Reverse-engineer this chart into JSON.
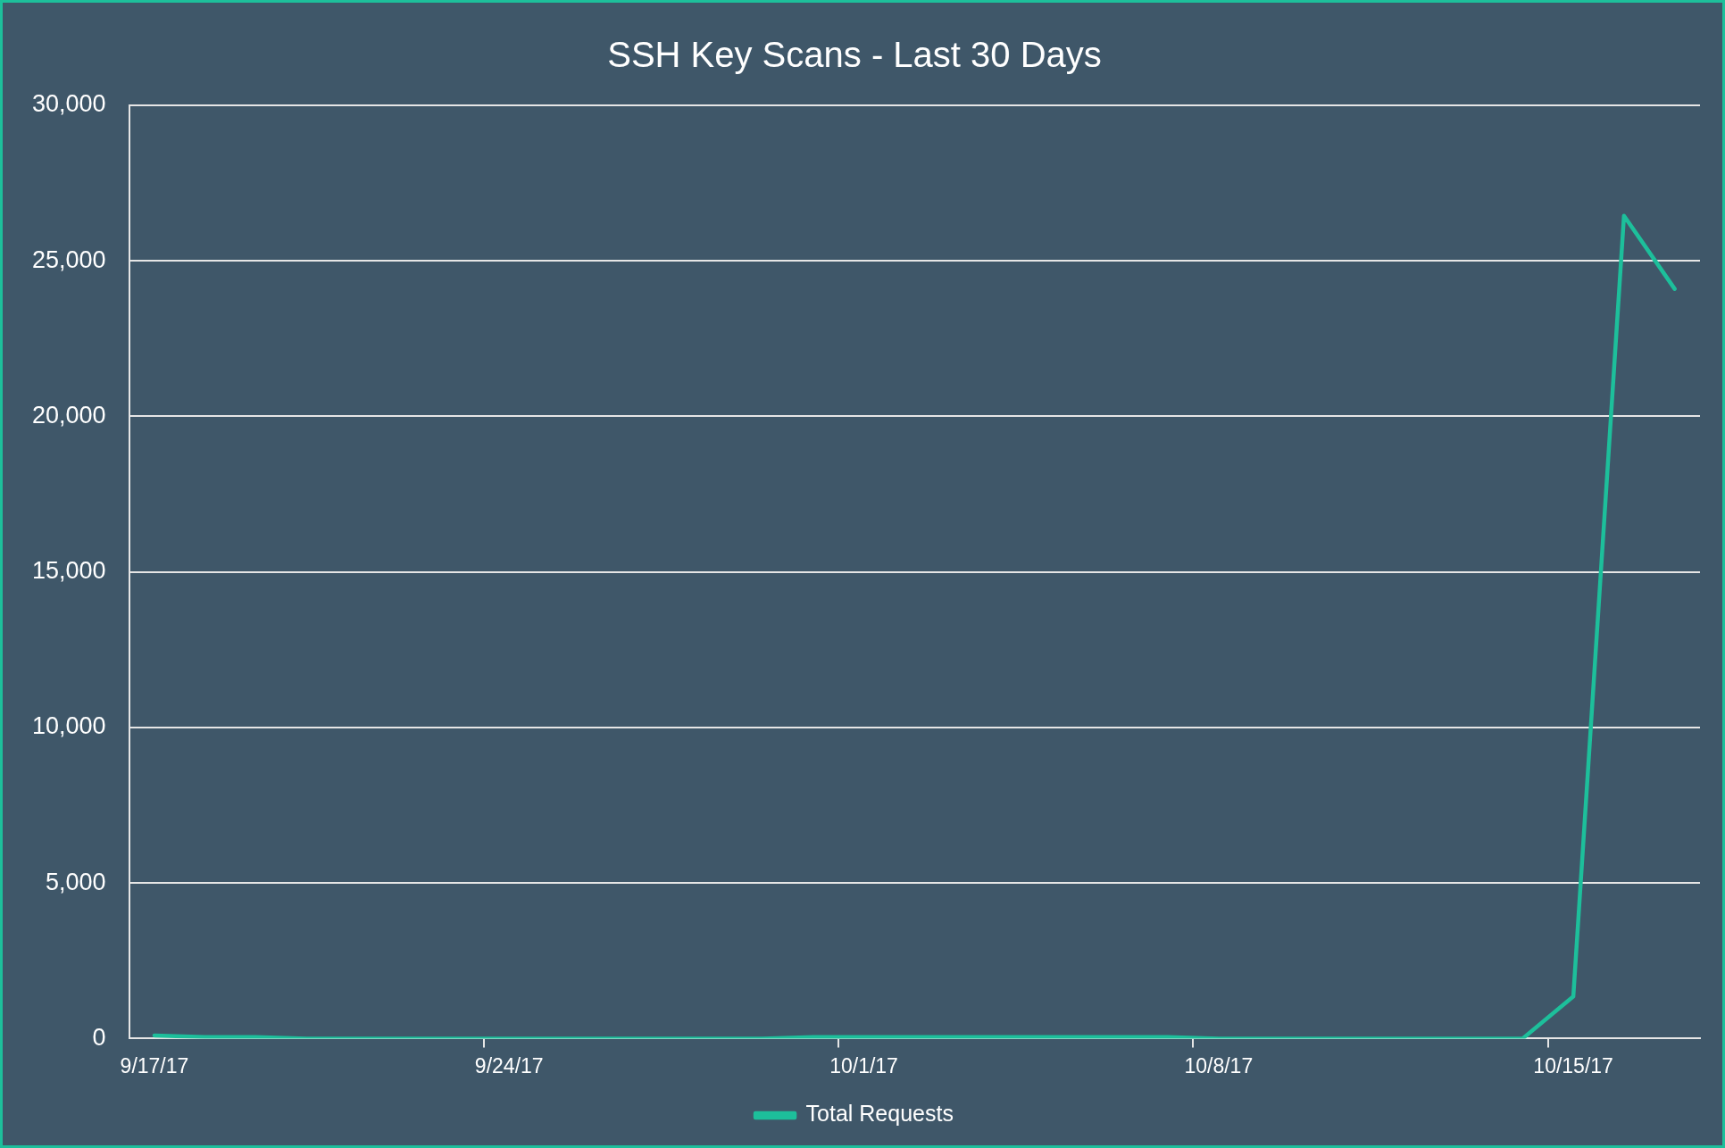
{
  "chart_data": {
    "type": "line",
    "title": "SSH Key Scans - Last 30 Days",
    "categories": [
      "9/17/17",
      null,
      null,
      null,
      null,
      null,
      null,
      "9/24/17",
      null,
      null,
      null,
      null,
      null,
      null,
      "10/1/17",
      null,
      null,
      null,
      null,
      null,
      null,
      "10/8/17",
      null,
      null,
      null,
      null,
      null,
      null,
      "10/15/17",
      null,
      null
    ],
    "series": [
      {
        "name": "Total Requests",
        "color": "#1dbf9b",
        "values": [
          100,
          50,
          50,
          0,
          0,
          0,
          0,
          0,
          0,
          0,
          0,
          0,
          0,
          50,
          50,
          50,
          50,
          50,
          50,
          50,
          50,
          0,
          0,
          0,
          0,
          0,
          0,
          0,
          1350,
          26450,
          24100
        ]
      }
    ],
    "ylim": [
      0,
      30000
    ],
    "yticks": [
      0,
      {
        "value": 5000,
        "label": "5,000"
      },
      {
        "value": 10000,
        "label": "10,000"
      },
      {
        "value": 15000,
        "label": "15,000"
      },
      {
        "value": 20000,
        "label": "20,000"
      },
      {
        "value": 25000,
        "label": "25,000"
      },
      {
        "value": 30000,
        "label": "30,000"
      }
    ],
    "grid": "y",
    "legend": "bottom",
    "marker": "none",
    "line_style": "solid"
  }
}
